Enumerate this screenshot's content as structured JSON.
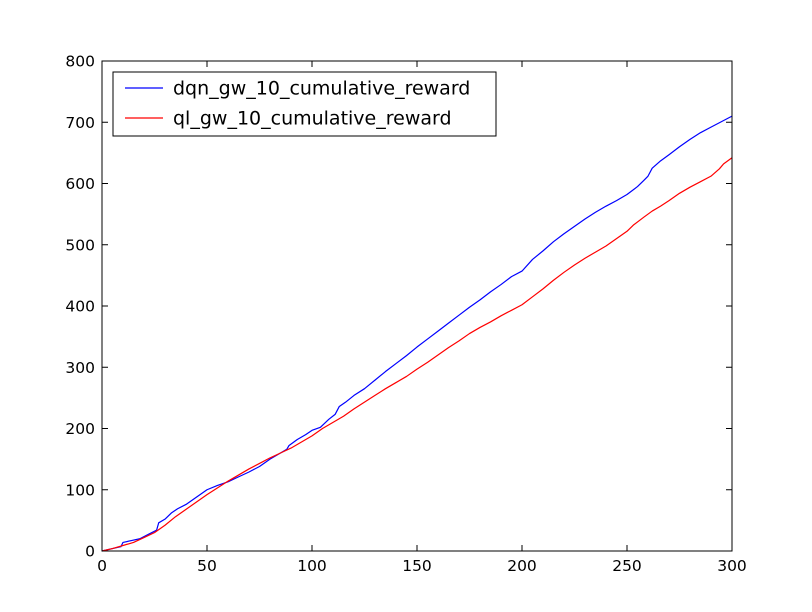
{
  "chart_data": {
    "type": "line",
    "title": "",
    "xlabel": "",
    "ylabel": "",
    "xlim": [
      0,
      300
    ],
    "ylim": [
      0,
      800
    ],
    "xticks": [
      0,
      50,
      100,
      150,
      200,
      250,
      300
    ],
    "yticks": [
      0,
      100,
      200,
      300,
      400,
      500,
      600,
      700,
      800
    ],
    "grid": false,
    "legend_position": "top-left",
    "series": [
      {
        "name": "dqn_gw_10_cumulative_reward",
        "color": "#0000ff",
        "points": [
          [
            0,
            0
          ],
          [
            5,
            4
          ],
          [
            9,
            7
          ],
          [
            10,
            14
          ],
          [
            14,
            17
          ],
          [
            18,
            20
          ],
          [
            22,
            27
          ],
          [
            26,
            34
          ],
          [
            27,
            46
          ],
          [
            30,
            52
          ],
          [
            33,
            62
          ],
          [
            36,
            69
          ],
          [
            40,
            76
          ],
          [
            45,
            88
          ],
          [
            50,
            100
          ],
          [
            55,
            107
          ],
          [
            60,
            113
          ],
          [
            65,
            121
          ],
          [
            70,
            129
          ],
          [
            75,
            138
          ],
          [
            80,
            150
          ],
          [
            85,
            160
          ],
          [
            88,
            166
          ],
          [
            89,
            172
          ],
          [
            93,
            182
          ],
          [
            97,
            190
          ],
          [
            100,
            197
          ],
          [
            104,
            202
          ],
          [
            108,
            215
          ],
          [
            111,
            223
          ],
          [
            113,
            236
          ],
          [
            116,
            243
          ],
          [
            120,
            254
          ],
          [
            125,
            265
          ],
          [
            130,
            279
          ],
          [
            135,
            293
          ],
          [
            140,
            306
          ],
          [
            145,
            319
          ],
          [
            150,
            333
          ],
          [
            155,
            346
          ],
          [
            160,
            359
          ],
          [
            165,
            372
          ],
          [
            170,
            385
          ],
          [
            175,
            398
          ],
          [
            180,
            410
          ],
          [
            185,
            423
          ],
          [
            190,
            435
          ],
          [
            195,
            448
          ],
          [
            200,
            457
          ],
          [
            205,
            476
          ],
          [
            210,
            490
          ],
          [
            215,
            505
          ],
          [
            220,
            518
          ],
          [
            225,
            530
          ],
          [
            230,
            542
          ],
          [
            235,
            553
          ],
          [
            240,
            563
          ],
          [
            245,
            572
          ],
          [
            250,
            582
          ],
          [
            255,
            595
          ],
          [
            258,
            605
          ],
          [
            260,
            612
          ],
          [
            262,
            625
          ],
          [
            266,
            637
          ],
          [
            270,
            647
          ],
          [
            275,
            660
          ],
          [
            280,
            672
          ],
          [
            285,
            683
          ],
          [
            290,
            692
          ],
          [
            295,
            701
          ],
          [
            300,
            710
          ]
        ]
      },
      {
        "name": "ql_gw_10_cumulative_reward",
        "color": "#ff0000",
        "points": [
          [
            0,
            0
          ],
          [
            5,
            4
          ],
          [
            10,
            9
          ],
          [
            15,
            14
          ],
          [
            20,
            22
          ],
          [
            25,
            30
          ],
          [
            30,
            42
          ],
          [
            35,
            56
          ],
          [
            40,
            68
          ],
          [
            45,
            80
          ],
          [
            50,
            92
          ],
          [
            55,
            103
          ],
          [
            60,
            114
          ],
          [
            65,
            124
          ],
          [
            70,
            134
          ],
          [
            75,
            143
          ],
          [
            80,
            152
          ],
          [
            85,
            160
          ],
          [
            90,
            168
          ],
          [
            95,
            178
          ],
          [
            100,
            188
          ],
          [
            105,
            200
          ],
          [
            110,
            210
          ],
          [
            115,
            220
          ],
          [
            120,
            232
          ],
          [
            125,
            243
          ],
          [
            130,
            254
          ],
          [
            135,
            265
          ],
          [
            140,
            275
          ],
          [
            145,
            285
          ],
          [
            150,
            297
          ],
          [
            155,
            308
          ],
          [
            160,
            320
          ],
          [
            165,
            332
          ],
          [
            170,
            343
          ],
          [
            175,
            355
          ],
          [
            180,
            365
          ],
          [
            185,
            374
          ],
          [
            190,
            384
          ],
          [
            195,
            393
          ],
          [
            200,
            402
          ],
          [
            205,
            415
          ],
          [
            210,
            428
          ],
          [
            215,
            442
          ],
          [
            220,
            455
          ],
          [
            225,
            467
          ],
          [
            230,
            478
          ],
          [
            235,
            488
          ],
          [
            240,
            498
          ],
          [
            245,
            510
          ],
          [
            250,
            522
          ],
          [
            253,
            532
          ],
          [
            258,
            545
          ],
          [
            262,
            555
          ],
          [
            266,
            563
          ],
          [
            270,
            572
          ],
          [
            275,
            584
          ],
          [
            280,
            594
          ],
          [
            285,
            603
          ],
          [
            290,
            612
          ],
          [
            294,
            624
          ],
          [
            296,
            632
          ],
          [
            300,
            642
          ]
        ]
      }
    ]
  }
}
